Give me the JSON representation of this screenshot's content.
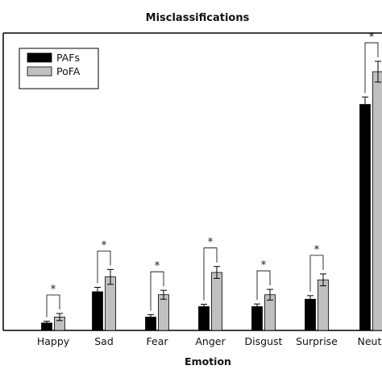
{
  "chart_data": {
    "type": "bar",
    "title": "Misclassifications",
    "xlabel": "Emotion",
    "ylabel": "",
    "categories": [
      "Happy",
      "Sad",
      "Fear",
      "Anger",
      "Disgust",
      "Surprise",
      "Neutral"
    ],
    "visible_category_text": [
      "Happy",
      "Sad",
      "Fear",
      "Anger",
      "Disgust",
      "Surprise",
      "Neutr"
    ],
    "ylim": [
      0,
      100
    ],
    "series": [
      {
        "name": "PAFs",
        "color": "#000000",
        "values": [
          2.5,
          13,
          4.5,
          8,
          8,
          10.5,
          76
        ],
        "errors": [
          0.6,
          1.5,
          0.8,
          0.8,
          0.9,
          1.2,
          2.5
        ]
      },
      {
        "name": "PoFA",
        "color": "#c0c0c0",
        "values": [
          4.5,
          18,
          12,
          19.5,
          12,
          17,
          87
        ],
        "errors": [
          1.2,
          2.5,
          1.5,
          2,
          1.8,
          2,
          3.5
        ]
      }
    ],
    "significance_marker": "*",
    "significant": [
      true,
      true,
      true,
      true,
      true,
      true,
      true
    ],
    "legend_position": "top-left",
    "grid": false
  }
}
